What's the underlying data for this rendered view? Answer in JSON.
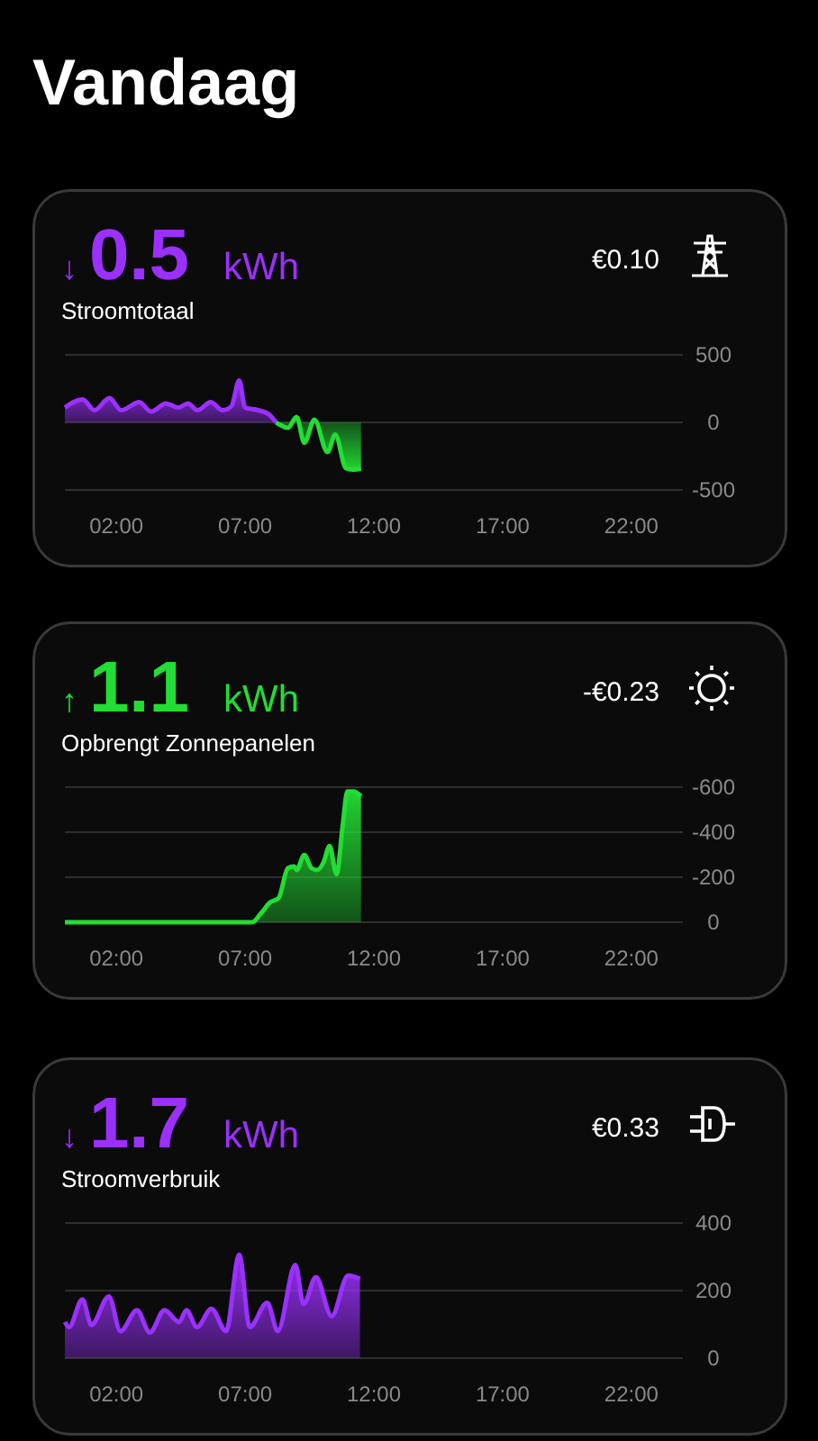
{
  "chart_data": [
    {
      "type": "other",
      "title": "Vandaag"
    },
    {
      "type": "area",
      "title": "Stroomtotaal",
      "annotations": [
        "↓",
        "0.5",
        "kWh",
        "€0.10"
      ],
      "grid": "y",
      "xlim": [
        0,
        24
      ],
      "xticks": [
        {
          "value": 2,
          "label": "02:00"
        },
        {
          "value": 7,
          "label": "07:00"
        },
        {
          "value": 12,
          "label": "12:00"
        },
        {
          "value": 17,
          "label": "17:00"
        },
        {
          "value": 22,
          "label": "22:00"
        }
      ],
      "ylim": [
        -500,
        500
      ],
      "yticks": [
        -500,
        0,
        500
      ],
      "series": [
        {
          "color": "#9b30ff",
          "x": [
            0,
            0.69,
            1.15,
            1.73,
            2.19,
            2.89,
            3.35,
            3.93,
            4.4,
            4.78,
            5.15,
            5.66,
            6.12,
            6.47,
            6.77,
            7.0,
            7.5,
            7.92,
            8.2
          ],
          "values": [
            110,
            170,
            90,
            180,
            90,
            150,
            80,
            140,
            110,
            140,
            90,
            150,
            90,
            120,
            310,
            110,
            90,
            60,
            0
          ]
        },
        {
          "color": "#22dd33",
          "x": [
            8.2,
            8.38,
            8.66,
            9.0,
            9.3,
            9.69,
            10.2,
            10.5,
            10.92,
            11.2,
            11.5
          ],
          "values": [
            0,
            -20,
            -40,
            40,
            -150,
            20,
            -220,
            -90,
            -340,
            -350,
            -340
          ]
        }
      ]
    },
    {
      "type": "area",
      "title": "Opbrengt Zonnepanelen",
      "annotations": [
        "↑",
        "1.1",
        "kWh",
        "-€0.23"
      ],
      "grid": "y",
      "xlim": [
        0,
        24
      ],
      "xticks": [
        {
          "value": 2,
          "label": "02:00"
        },
        {
          "value": 7,
          "label": "07:00"
        },
        {
          "value": 12,
          "label": "12:00"
        },
        {
          "value": 17,
          "label": "17:00"
        },
        {
          "value": 22,
          "label": "22:00"
        }
      ],
      "ylim": [
        0,
        -600
      ],
      "yticks": [
        0,
        -200,
        -400,
        -600
      ],
      "series": [
        {
          "color": "#22dd33",
          "x": [
            0,
            7.27,
            7.62,
            7.97,
            8.3,
            8.66,
            8.9,
            9.0,
            9.3,
            9.58,
            9.8,
            10.05,
            10.28,
            10.55,
            10.8,
            10.97,
            11.2,
            11.5
          ],
          "values": [
            0,
            0,
            -40,
            -88,
            -107,
            -240,
            -248,
            -232,
            -299,
            -240,
            -232,
            -267,
            -339,
            -213,
            -440,
            -581,
            -581,
            -560
          ]
        }
      ]
    },
    {
      "type": "area",
      "title": "Stroomverbruik",
      "annotations": [
        "↓",
        "1.7",
        "kWh",
        "€0.33"
      ],
      "grid": "y",
      "xlim": [
        0,
        24
      ],
      "xticks": [
        {
          "value": 2,
          "label": "02:00"
        },
        {
          "value": 7,
          "label": "07:00"
        },
        {
          "value": 12,
          "label": "12:00"
        },
        {
          "value": 17,
          "label": "17:00"
        },
        {
          "value": 22,
          "label": "22:00"
        }
      ],
      "ylim": [
        0,
        400
      ],
      "yticks": [
        0,
        200,
        400
      ],
      "series": [
        {
          "color": "#9b30ff",
          "x": [
            0,
            0.16,
            0.68,
            1.03,
            1.71,
            2.16,
            2.8,
            3.3,
            3.87,
            4.44,
            4.72,
            5.13,
            5.69,
            6.26,
            6.77,
            7.18,
            7.86,
            8.27,
            8.95,
            9.27,
            9.75,
            10.36,
            11.0,
            11.46
          ],
          "values": [
            107,
            92,
            174,
            98,
            183,
            80,
            142,
            76,
            142,
            107,
            142,
            92,
            146,
            80,
            306,
            92,
            164,
            80,
            276,
            160,
            240,
            124,
            245,
            235
          ]
        }
      ]
    }
  ]
}
